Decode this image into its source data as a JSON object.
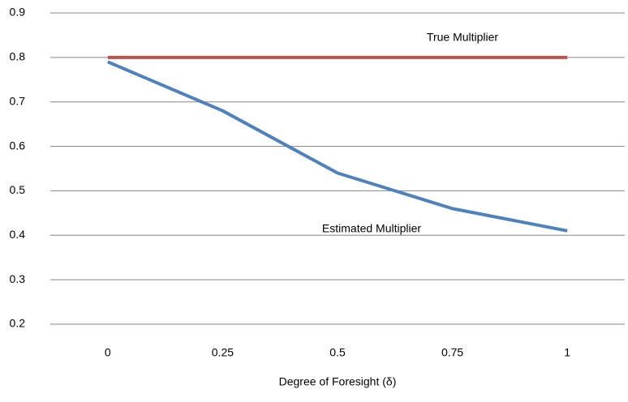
{
  "chart_data": {
    "type": "line",
    "x_label": "Degree of Foresight  (δ)",
    "categories": [
      "0",
      "0.25",
      "0.5",
      "0.75",
      "1"
    ],
    "series": [
      {
        "name": "True Multiplier",
        "color": "#c0504d",
        "values": [
          0.8,
          0.8,
          0.8,
          0.8,
          0.8
        ]
      },
      {
        "name": "Estimated Multiplier",
        "color": "#4f81bd",
        "values": [
          0.79,
          0.68,
          0.54,
          0.46,
          0.41
        ]
      }
    ],
    "ylim": [
      0.2,
      0.9
    ],
    "yticks": [
      0.2,
      0.3,
      0.4,
      0.5,
      0.6,
      0.7,
      0.8,
      0.9
    ],
    "grid": true
  }
}
